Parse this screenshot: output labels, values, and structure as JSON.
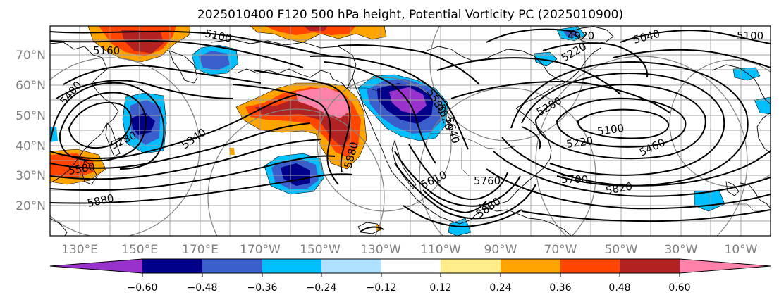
{
  "title": "2025010400 F120 500 hPa height, Potential Vorticity PC (2025010900)",
  "lat_labels": [
    "20°N",
    "30°N",
    "40°N",
    "50°N",
    "60°N",
    "70°N"
  ],
  "lon_labels": [
    "130°E",
    "150°E",
    "170°E",
    "170°W",
    "150°W",
    "130°W",
    "110°W",
    "90°W",
    "70°W",
    "50°W",
    "30°W",
    "10°W"
  ],
  "contour_labels": [
    "5100",
    "5160",
    "5400",
    "5340",
    "5280",
    "5580",
    "5880",
    "4920",
    "5040",
    "5100",
    "5220",
    "5580",
    "5280",
    "5100",
    "5220",
    "5460",
    "5700",
    "5820",
    "5760",
    "5880",
    "5640",
    "5520",
    "5610",
    "5880"
  ],
  "colorbar": {
    "colors": [
      "#9932cc",
      "#00008b",
      "#3a5fcd",
      "#00bfff",
      "#b0e2ff",
      "#ffffff",
      "#ffec8b",
      "#ffa500",
      "#ff4500",
      "#b22222",
      "#ff82ab"
    ],
    "tick_labels": [
      "−0.60",
      "−0.48",
      "−0.36",
      "−0.24",
      "−0.12",
      "0.12",
      "0.24",
      "0.36",
      "0.48",
      "0.60"
    ]
  }
}
